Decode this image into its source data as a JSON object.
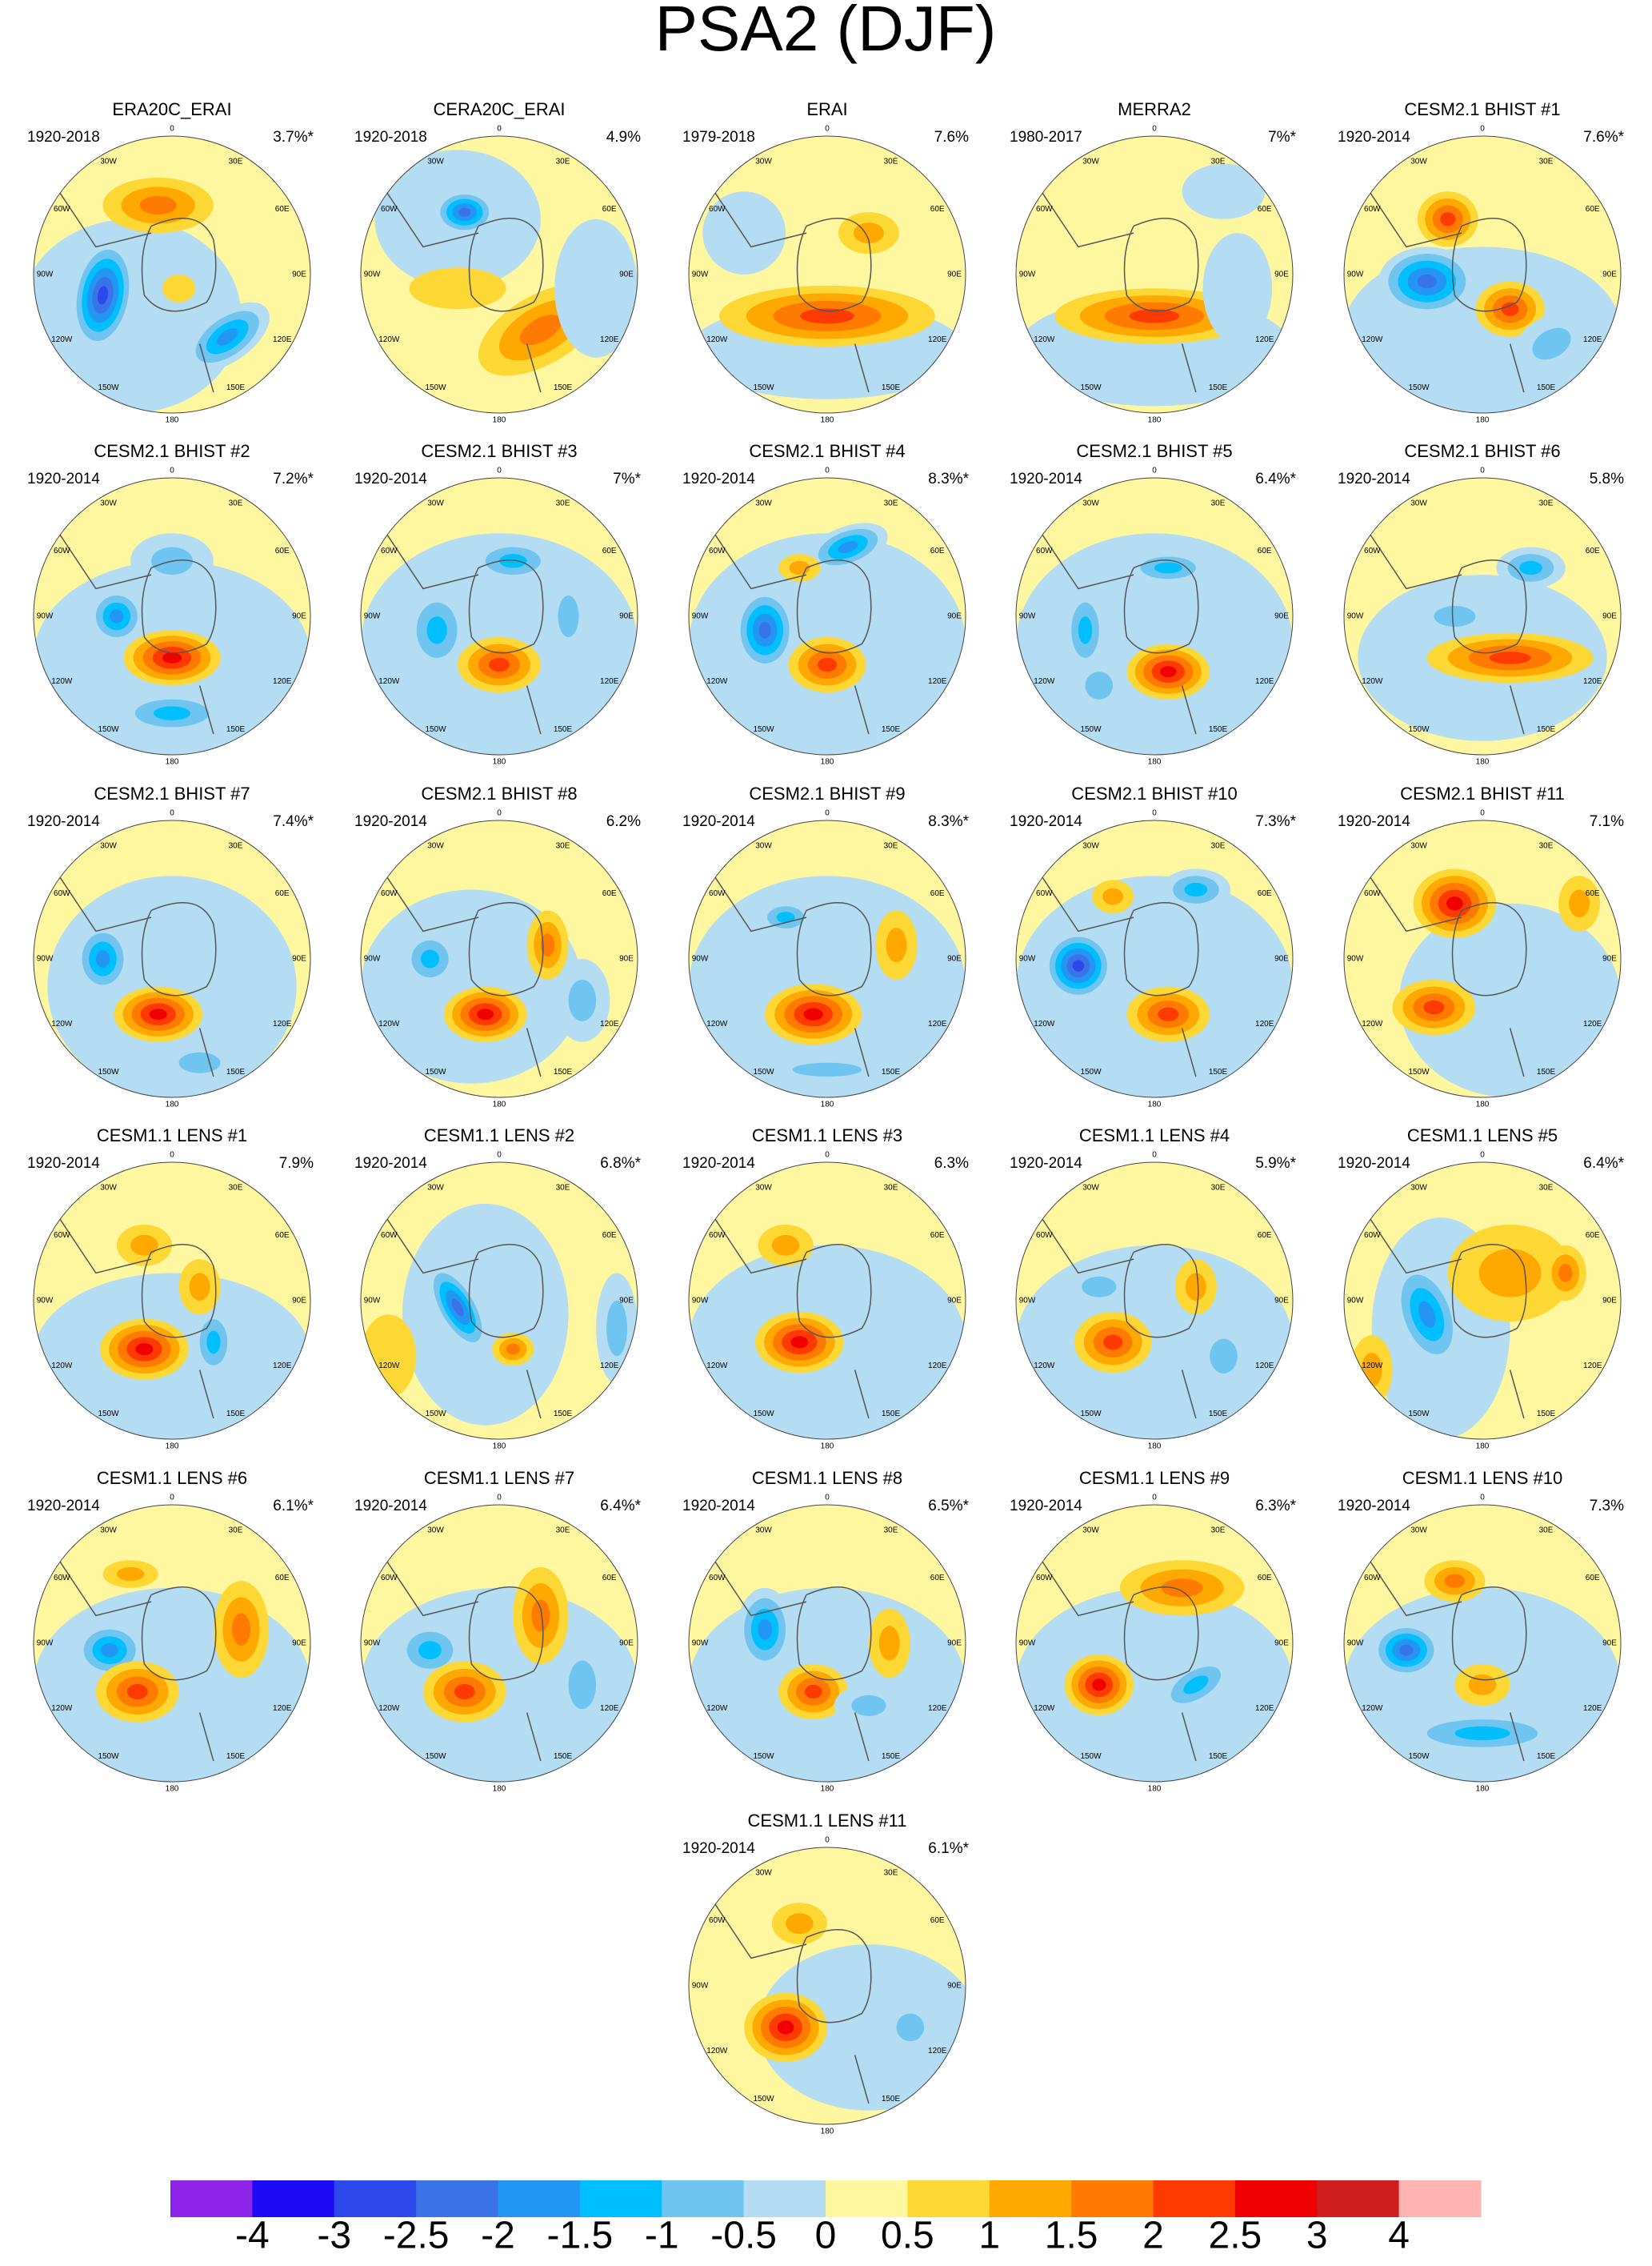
{
  "title": "PSA2 (DJF)",
  "longitude_labels": [
    "0",
    "30E",
    "60E",
    "90E",
    "120E",
    "150E",
    "180",
    "150W",
    "120W",
    "90W",
    "60W",
    "30W"
  ],
  "panels": [
    {
      "title": "ERA20C_ERAI",
      "period": "1920-2018",
      "variance": "3.7%*"
    },
    {
      "title": "CERA20C_ERAI",
      "period": "1920-2018",
      "variance": "4.9%"
    },
    {
      "title": "ERAI",
      "period": "1979-2018",
      "variance": "7.6%"
    },
    {
      "title": "MERRA2",
      "period": "1980-2017",
      "variance": "7%*"
    },
    {
      "title": "CESM2.1 BHIST #1",
      "period": "1920-2014",
      "variance": "7.6%*"
    },
    {
      "title": "CESM2.1 BHIST #2",
      "period": "1920-2014",
      "variance": "7.2%*"
    },
    {
      "title": "CESM2.1 BHIST #3",
      "period": "1920-2014",
      "variance": "7%*"
    },
    {
      "title": "CESM2.1 BHIST #4",
      "period": "1920-2014",
      "variance": "8.3%*"
    },
    {
      "title": "CESM2.1 BHIST #5",
      "period": "1920-2014",
      "variance": "6.4%*"
    },
    {
      "title": "CESM2.1 BHIST #6",
      "period": "1920-2014",
      "variance": "5.8%"
    },
    {
      "title": "CESM2.1 BHIST #7",
      "period": "1920-2014",
      "variance": "7.4%*"
    },
    {
      "title": "CESM2.1 BHIST #8",
      "period": "1920-2014",
      "variance": "6.2%"
    },
    {
      "title": "CESM2.1 BHIST #9",
      "period": "1920-2014",
      "variance": "8.3%*"
    },
    {
      "title": "CESM2.1 BHIST #10",
      "period": "1920-2014",
      "variance": "7.3%*"
    },
    {
      "title": "CESM2.1 BHIST #11",
      "period": "1920-2014",
      "variance": "7.1%"
    },
    {
      "title": "CESM1.1 LENS #1",
      "period": "1920-2014",
      "variance": "7.9%"
    },
    {
      "title": "CESM1.1 LENS #2",
      "period": "1920-2014",
      "variance": "6.8%*"
    },
    {
      "title": "CESM1.1 LENS #3",
      "period": "1920-2014",
      "variance": "6.3%"
    },
    {
      "title": "CESM1.1 LENS #4",
      "period": "1920-2014",
      "variance": "5.9%*"
    },
    {
      "title": "CESM1.1 LENS #5",
      "period": "1920-2014",
      "variance": "6.4%*"
    },
    {
      "title": "CESM1.1 LENS #6",
      "period": "1920-2014",
      "variance": "6.1%*"
    },
    {
      "title": "CESM1.1 LENS #7",
      "period": "1920-2014",
      "variance": "6.4%*"
    },
    {
      "title": "CESM1.1 LENS #8",
      "period": "1920-2014",
      "variance": "6.5%*"
    },
    {
      "title": "CESM1.1 LENS #9",
      "period": "1920-2014",
      "variance": "6.3%*"
    },
    {
      "title": "CESM1.1 LENS #10",
      "period": "1920-2014",
      "variance": "7.3%"
    },
    {
      "title": "CESM1.1 LENS #11",
      "period": "1920-2014",
      "variance": "6.1%*"
    }
  ],
  "colorbar": {
    "colors": [
      "#8e24e8",
      "#1e0bf5",
      "#2c47ea",
      "#3a72e8",
      "#2196f3",
      "#00bfff",
      "#6fc5f0",
      "#b4dcf2",
      "#fff7a0",
      "#fdd835",
      "#ffa800",
      "#ff7a00",
      "#ff3a00",
      "#f00000",
      "#d01e1e",
      "#ffb3b3"
    ],
    "ticks": [
      -4,
      -3,
      -2.5,
      -2,
      -1.5,
      -1,
      -0.5,
      0,
      0.5,
      1,
      1.5,
      2,
      2.5,
      3,
      4
    ]
  }
}
